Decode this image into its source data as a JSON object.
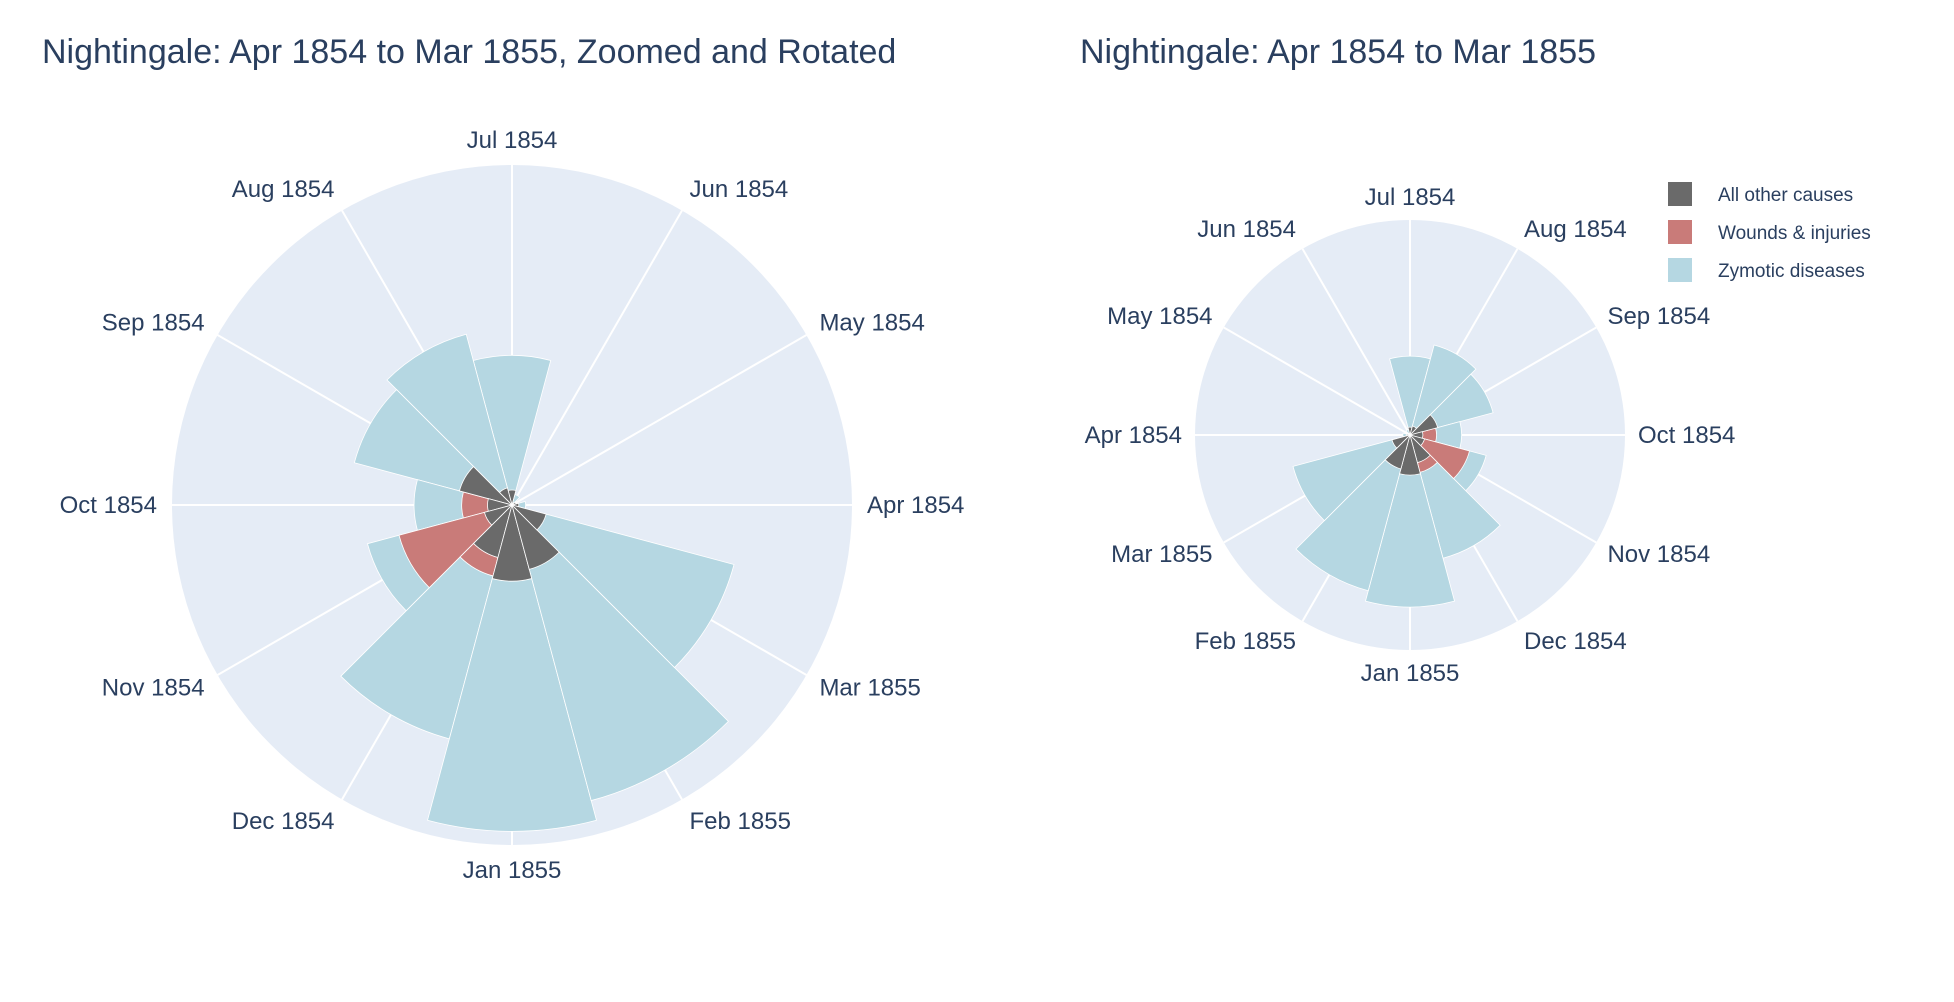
{
  "chart_data": [
    {
      "type": "barpolar",
      "title": "Nightingale: Apr 1854 to Mar 1855, Zoomed and Rotated",
      "angular_direction": "counterclockwise",
      "angular_rotation_deg": 0,
      "radial_range": [
        0,
        2500
      ],
      "radial_axis_visible": false,
      "categories": [
        "Apr 1854",
        "May 1854",
        "Jun 1854",
        "Jul 1854",
        "Aug 1854",
        "Sep 1854",
        "Oct 1854",
        "Nov 1854",
        "Dec 1854",
        "Jan 1855",
        "Feb 1855",
        "Mar 1855"
      ],
      "series": [
        {
          "name": "Zymotic diseases",
          "values": [
            100,
            35,
            80,
            1100,
            1300,
            1200,
            720,
            1100,
            1780,
            2400,
            2250,
            1690
          ]
        },
        {
          "name": "Wounds & injuries",
          "values": [
            5,
            15,
            5,
            10,
            80,
            270,
            370,
            860,
            540,
            430,
            470,
            250
          ]
        },
        {
          "name": "All other causes",
          "values": [
            50,
            30,
            20,
            110,
            130,
            400,
            180,
            210,
            400,
            560,
            490,
            260
          ]
        }
      ]
    },
    {
      "type": "barpolar",
      "title": "Nightingale: Apr 1854 to Mar 1855",
      "angular_direction": "clockwise",
      "angular_rotation_deg": 180,
      "radial_range": [
        0,
        3000
      ],
      "radial_axis_visible": false,
      "categories": [
        "Apr 1854",
        "May 1854",
        "Jun 1854",
        "Jul 1854",
        "Aug 1854",
        "Sep 1854",
        "Oct 1854",
        "Nov 1854",
        "Dec 1854",
        "Jan 1855",
        "Feb 1855",
        "Mar 1855"
      ],
      "series": [
        {
          "name": "Zymotic diseases",
          "values": [
            100,
            35,
            80,
            1100,
            1300,
            1200,
            720,
            1100,
            1780,
            2400,
            2250,
            1690
          ]
        },
        {
          "name": "Wounds & injuries",
          "values": [
            5,
            15,
            5,
            10,
            80,
            270,
            370,
            860,
            540,
            430,
            470,
            250
          ]
        },
        {
          "name": "All other causes",
          "values": [
            50,
            30,
            20,
            110,
            130,
            400,
            180,
            210,
            400,
            560,
            490,
            260
          ]
        }
      ]
    }
  ],
  "legend": {
    "placement": "top-right",
    "items": [
      {
        "label": "All other causes",
        "color": "#6a6a6a"
      },
      {
        "label": "Wounds & injuries",
        "color": "#c97b79"
      },
      {
        "label": "Zymotic diseases",
        "color": "#b5d7e2"
      }
    ]
  },
  "colors": {
    "Zymotic diseases": "#b5d7e2",
    "Wounds & injuries": "#c97b79",
    "All other causes": "#6a6a6a",
    "polar_background": "#e5ecf6",
    "grid": "#ffffff"
  }
}
